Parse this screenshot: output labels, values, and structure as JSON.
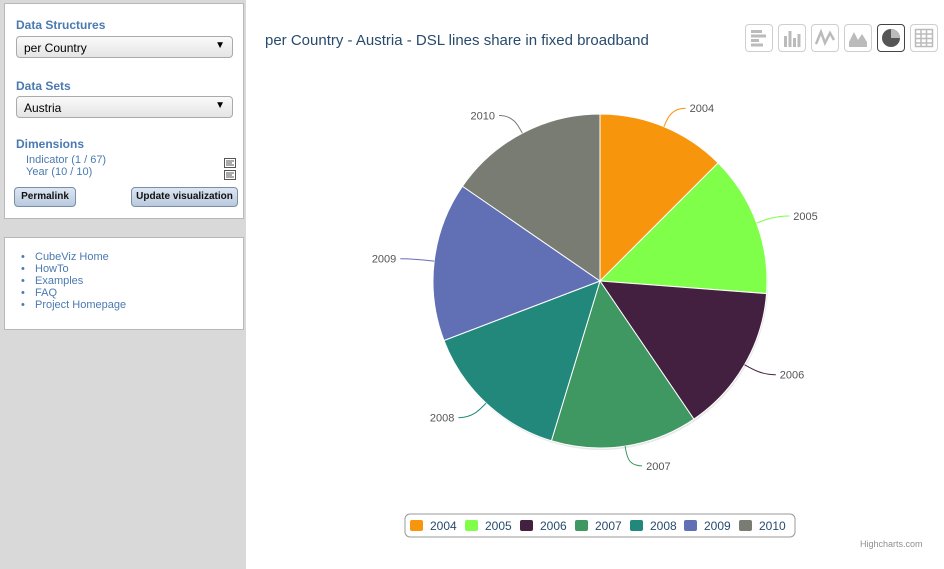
{
  "sidebar": {
    "data_structures_label": "Data Structures",
    "data_structures_value": "per Country",
    "data_sets_label": "Data Sets",
    "data_sets_value": "Austria",
    "dimensions_label": "Dimensions",
    "dimensions": [
      {
        "label": "Indicator (1 / 67)",
        "icon": "edit-icon"
      },
      {
        "label": "Year (10 / 10)",
        "icon": "edit-icon"
      }
    ],
    "permalink_label": "Permalink",
    "update_label": "Update visualization",
    "links": [
      "CubeViz Home",
      "HowTo",
      "Examples",
      "FAQ",
      "Project Homepage"
    ]
  },
  "chart_title": "per Country - Austria - DSL lines share in fixed broadband",
  "toolbar": [
    "bar-chart-icon",
    "column-chart-icon",
    "line-chart-icon",
    "area-chart-icon",
    "pie-chart-icon",
    "table-icon"
  ],
  "active_tool": "pie-chart-icon",
  "credits": "Highcharts.com",
  "chart_data": {
    "type": "pie",
    "title": "per Country - Austria - DSL lines share in fixed broadband",
    "categories": [
      "2004",
      "2005",
      "2006",
      "2007",
      "2008",
      "2009",
      "2010"
    ],
    "values": [
      0.125,
      0.137,
      0.143,
      0.142,
      0.145,
      0.154,
      0.154
    ],
    "colors": [
      "#f7960d",
      "#80ff4a",
      "#43203f",
      "#3f9761",
      "#22887b",
      "#6170b4",
      "#787c72"
    ],
    "legend_position": "bottom"
  }
}
